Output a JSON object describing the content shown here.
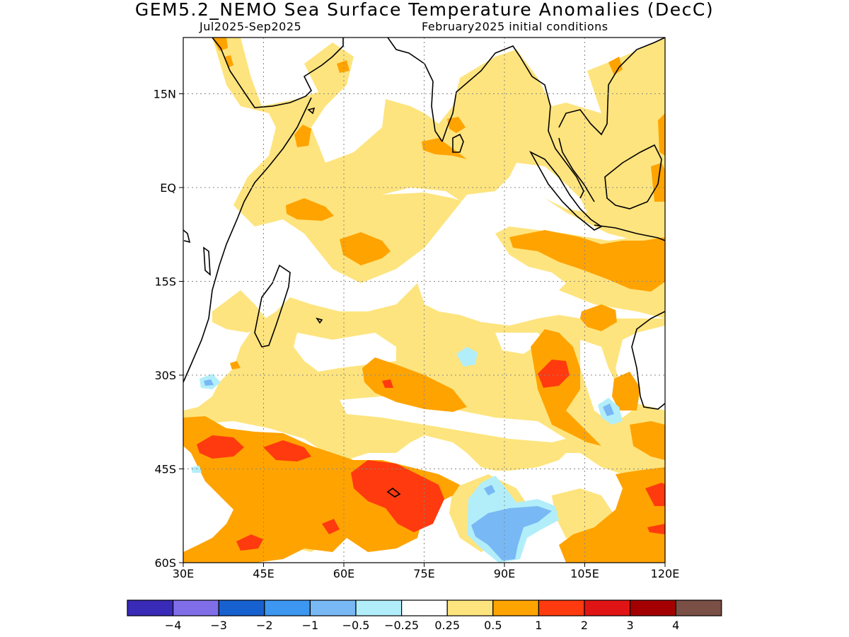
{
  "title": "GEM5.2_NEMO Sea Surface Temperature Anomalies (DecC)",
  "subtitle_left": "Jul2025-Sep2025",
  "subtitle_right": "February2025 initial conditions",
  "map": {
    "lon_range": [
      30,
      120
    ],
    "lat_range": [
      -60,
      24
    ],
    "x_ticks": [
      {
        "value": 30,
        "label": "30E"
      },
      {
        "value": 45,
        "label": "45E"
      },
      {
        "value": 60,
        "label": "60E"
      },
      {
        "value": 75,
        "label": "75E"
      },
      {
        "value": 90,
        "label": "90E"
      },
      {
        "value": 105,
        "label": "105E"
      },
      {
        "value": 120,
        "label": "120E"
      }
    ],
    "y_ticks": [
      {
        "value": 15,
        "label": "15N"
      },
      {
        "value": 0,
        "label": "EQ"
      },
      {
        "value": -15,
        "label": "15S"
      },
      {
        "value": -30,
        "label": "30S"
      },
      {
        "value": -45,
        "label": "45S"
      },
      {
        "value": -60,
        "label": "60S"
      }
    ],
    "grid": "dotted"
  },
  "colorbar": {
    "colors": [
      "#3a2ab8",
      "#7f6ee8",
      "#1760d0",
      "#3d96f0",
      "#78b8f5",
      "#b2eefa",
      "#ffffff",
      "#fee47e",
      "#ffa300",
      "#ff3a0f",
      "#e01414",
      "#a50000",
      "#7a4f45"
    ],
    "labels": [
      "-4",
      "-3",
      "-2",
      "-1",
      "-0.5",
      "-0.25",
      "0.25",
      "0.5",
      "1",
      "2",
      "3",
      "4"
    ]
  }
}
